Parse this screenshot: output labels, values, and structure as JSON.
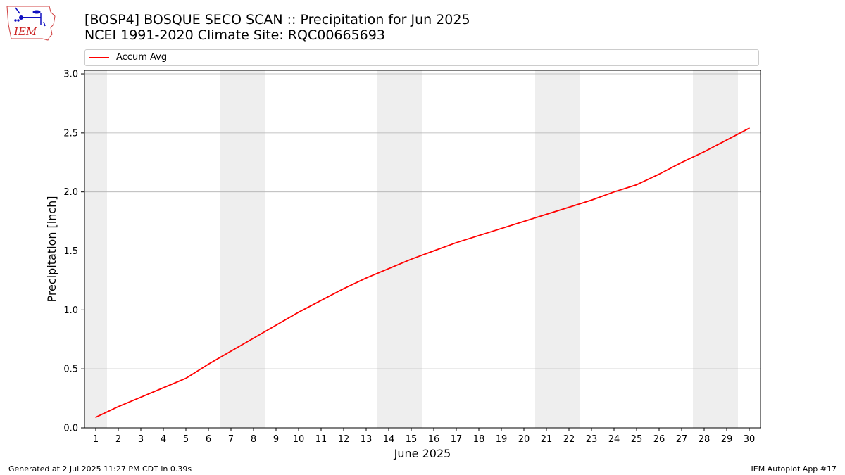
{
  "header": {
    "logo_text": "IEM",
    "title_line1": "[BOSP4] BOSQUE SECO SCAN :: Precipitation for Jun 2025",
    "title_line2": "NCEI 1991-2020 Climate Site: RQC00665693"
  },
  "footer": {
    "left": "Generated at 2 Jul 2025 11:27 PM CDT in 0.39s",
    "right": "IEM Autoplot App #17"
  },
  "colors": {
    "line": "#ff0000",
    "weekend_band": "#eeeeee",
    "grid": "#b0b0b0"
  },
  "chart_data": {
    "type": "line",
    "xlabel": "June 2025",
    "ylabel": "Precipitation [inch]",
    "xlim": [
      0.5,
      30.5
    ],
    "ylim": [
      0,
      3.03
    ],
    "yticks": [
      0.0,
      0.5,
      1.0,
      1.5,
      2.0,
      2.5,
      3.0
    ],
    "ytick_labels": [
      "0.0",
      "0.5",
      "1.0",
      "1.5",
      "2.0",
      "2.5",
      "3.0"
    ],
    "xticks": [
      1,
      2,
      3,
      4,
      5,
      6,
      7,
      8,
      9,
      10,
      11,
      12,
      13,
      14,
      15,
      16,
      17,
      18,
      19,
      20,
      21,
      22,
      23,
      24,
      25,
      26,
      27,
      28,
      29,
      30
    ],
    "grid": "horizontal",
    "legend_position": "top",
    "weekend_days": [
      1,
      7,
      8,
      14,
      15,
      21,
      22,
      28,
      29
    ],
    "series": [
      {
        "name": "Accum Avg",
        "x": [
          1,
          2,
          3,
          4,
          5,
          6,
          7,
          8,
          9,
          10,
          11,
          12,
          13,
          14,
          15,
          16,
          17,
          18,
          19,
          20,
          21,
          22,
          23,
          24,
          25,
          26,
          27,
          28,
          29,
          30
        ],
        "values": [
          0.09,
          0.18,
          0.26,
          0.34,
          0.42,
          0.54,
          0.65,
          0.76,
          0.87,
          0.98,
          1.08,
          1.18,
          1.27,
          1.35,
          1.43,
          1.5,
          1.57,
          1.63,
          1.69,
          1.75,
          1.81,
          1.87,
          1.93,
          2.0,
          2.06,
          2.15,
          2.25,
          2.34,
          2.44,
          2.54
        ]
      }
    ]
  }
}
